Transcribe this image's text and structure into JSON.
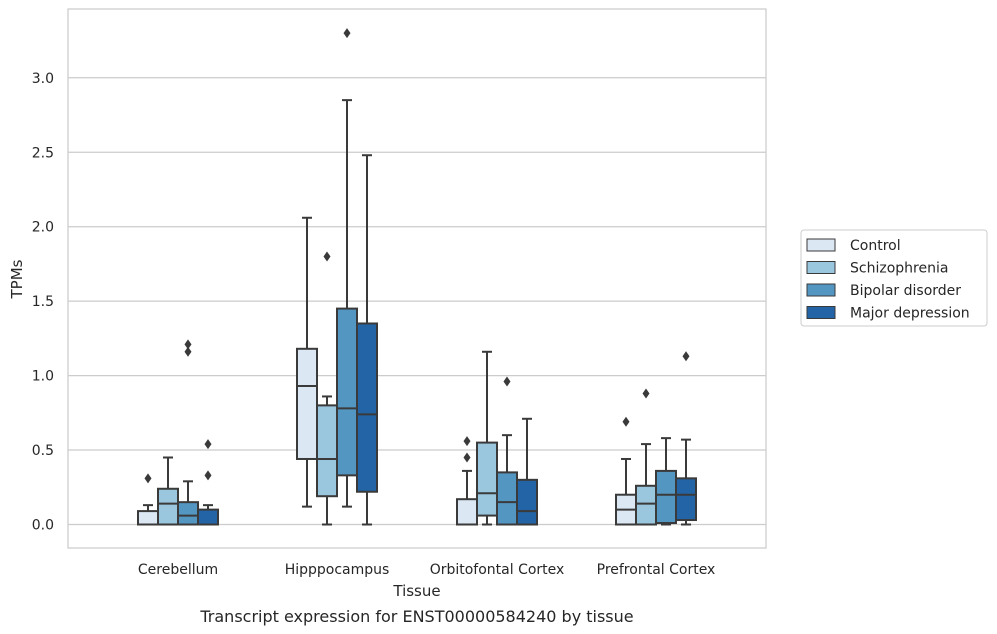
{
  "chart_data": {
    "type": "box",
    "title": "Transcript expression for ENST00000584240 by tissue",
    "xlabel": "Tissue",
    "ylabel": "TPMs",
    "ylim": [
      -0.16,
      3.43
    ],
    "yticks": [
      0.0,
      0.5,
      1.0,
      1.5,
      2.0,
      2.5,
      3.0
    ],
    "ytick_labels": [
      "0.0",
      "0.5",
      "1.0",
      "1.5",
      "2.0",
      "2.5",
      "3.0"
    ],
    "grid": "horizontal",
    "legend_position": "right",
    "categories": [
      "Cerebellum",
      "Hipppocampus",
      "Orbitofontal Cortex",
      "Prefrontal Cortex"
    ],
    "series": [
      {
        "name": "Control",
        "color": "#dbe7f3",
        "boxes": [
          {
            "whislo": 0.0,
            "q1": 0.0,
            "med": 0.0,
            "q3": 0.09,
            "whishi": 0.13,
            "fliers": [
              0.31
            ]
          },
          {
            "whislo": 0.12,
            "q1": 0.44,
            "med": 0.93,
            "q3": 1.18,
            "whishi": 2.06,
            "fliers": []
          },
          {
            "whislo": 0.0,
            "q1": 0.0,
            "med": 0.0,
            "q3": 0.17,
            "whishi": 0.36,
            "fliers": [
              0.45,
              0.56
            ]
          },
          {
            "whislo": 0.0,
            "q1": 0.0,
            "med": 0.1,
            "q3": 0.2,
            "whishi": 0.44,
            "fliers": [
              0.69
            ]
          }
        ]
      },
      {
        "name": "Schizophrenia",
        "color": "#9ac7de",
        "boxes": [
          {
            "whislo": 0.0,
            "q1": 0.0,
            "med": 0.14,
            "q3": 0.24,
            "whishi": 0.45,
            "fliers": []
          },
          {
            "whislo": 0.0,
            "q1": 0.19,
            "med": 0.44,
            "q3": 0.8,
            "whishi": 0.86,
            "fliers": [
              1.8
            ]
          },
          {
            "whislo": 0.0,
            "q1": 0.06,
            "med": 0.21,
            "q3": 0.55,
            "whishi": 1.16,
            "fliers": []
          },
          {
            "whislo": 0.0,
            "q1": 0.0,
            "med": 0.14,
            "q3": 0.26,
            "whishi": 0.54,
            "fliers": [
              0.88
            ]
          }
        ]
      },
      {
        "name": "Bipolar disorder",
        "color": "#5496c2",
        "boxes": [
          {
            "whislo": 0.0,
            "q1": 0.0,
            "med": 0.06,
            "q3": 0.15,
            "whishi": 0.29,
            "fliers": [
              1.16,
              1.21
            ]
          },
          {
            "whislo": 0.12,
            "q1": 0.33,
            "med": 0.78,
            "q3": 1.45,
            "whishi": 2.85,
            "fliers": [
              3.3
            ]
          },
          {
            "whislo": 0.0,
            "q1": 0.0,
            "med": 0.15,
            "q3": 0.35,
            "whishi": 0.6,
            "fliers": [
              0.96
            ]
          },
          {
            "whislo": 0.0,
            "q1": 0.01,
            "med": 0.2,
            "q3": 0.36,
            "whishi": 0.58,
            "fliers": []
          }
        ]
      },
      {
        "name": "Major depression",
        "color": "#2364a6",
        "boxes": [
          {
            "whislo": 0.0,
            "q1": 0.0,
            "med": 0.0,
            "q3": 0.1,
            "whishi": 0.13,
            "fliers": [
              0.33,
              0.54
            ]
          },
          {
            "whislo": 0.0,
            "q1": 0.22,
            "med": 0.74,
            "q3": 1.35,
            "whishi": 2.48,
            "fliers": []
          },
          {
            "whislo": 0.0,
            "q1": 0.0,
            "med": 0.09,
            "q3": 0.3,
            "whishi": 0.71,
            "fliers": []
          },
          {
            "whislo": 0.0,
            "q1": 0.03,
            "med": 0.2,
            "q3": 0.31,
            "whishi": 0.57,
            "fliers": [
              1.13
            ]
          }
        ]
      }
    ]
  }
}
